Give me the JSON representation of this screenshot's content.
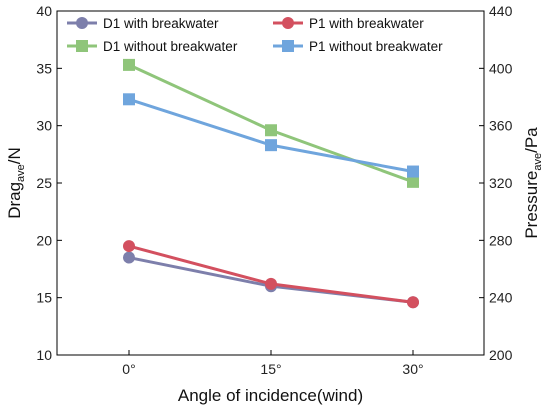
{
  "chart_data": {
    "type": "line",
    "categories": [
      "0°",
      "15°",
      "30°"
    ],
    "xlabel": "Angle of incidence(wind)",
    "ylabel_left": {
      "main": "Drag",
      "sub": "ave",
      "suffix": "/N"
    },
    "ylabel_right": {
      "main": "Pressure",
      "sub": "ave",
      "suffix": "/Pa"
    },
    "ylim_left": [
      10,
      40
    ],
    "ylim_right": [
      200,
      440
    ],
    "yticks_left": [
      "10",
      "15",
      "20",
      "25",
      "30",
      "35",
      "40"
    ],
    "yticks_right": [
      "200",
      "240",
      "280",
      "320",
      "360",
      "400",
      "440"
    ],
    "grid": false,
    "legend_position": "top",
    "series": [
      {
        "name": "D1 with breakwater",
        "axis": "left",
        "marker": "circle",
        "color": "#7d7fab",
        "values": [
          18.5,
          16.0,
          14.6
        ]
      },
      {
        "name": "P1 with breakwater",
        "axis": "left",
        "marker": "circle",
        "color": "#d3505f",
        "values": [
          19.5,
          16.2,
          14.6
        ]
      },
      {
        "name": "D1 without breakwater",
        "axis": "left",
        "marker": "square",
        "color": "#8fc57a",
        "values": [
          35.3,
          29.6,
          25.1
        ]
      },
      {
        "name": "P1 without breakwater",
        "axis": "left",
        "marker": "square",
        "color": "#6fa5dd",
        "values": [
          32.3,
          28.3,
          26.0
        ]
      }
    ]
  }
}
